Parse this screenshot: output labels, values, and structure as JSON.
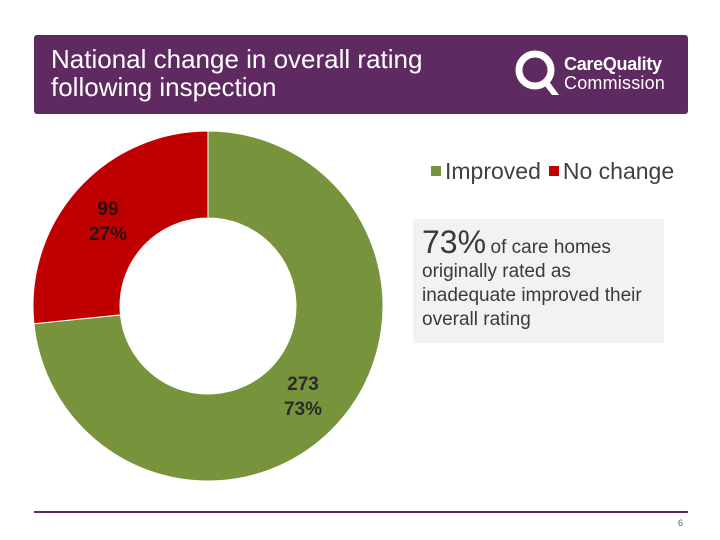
{
  "header": {
    "title": "National change in overall rating\nfollowing inspection",
    "background": "#5f2a61"
  },
  "logo": {
    "line1": "CareQuality",
    "line2": "Commission",
    "icon": "cqc-q-logo-icon"
  },
  "info_box": {
    "big": "73%",
    "text_inline": "of care homes",
    "text_rest": "originally rated as inadequate improved their overall rating"
  },
  "footer": {
    "page_number": "6",
    "line_color": "#5f2a61"
  },
  "chart_data": {
    "type": "pie",
    "subtype": "donut",
    "categories": [
      "Improved",
      "No change"
    ],
    "values": [
      273,
      99
    ],
    "percent_labels": [
      "73%",
      "27%"
    ],
    "colors": [
      "#77933c",
      "#c00000"
    ],
    "legend_placement": "top-right",
    "legend": [
      "Improved",
      "No change"
    ]
  }
}
